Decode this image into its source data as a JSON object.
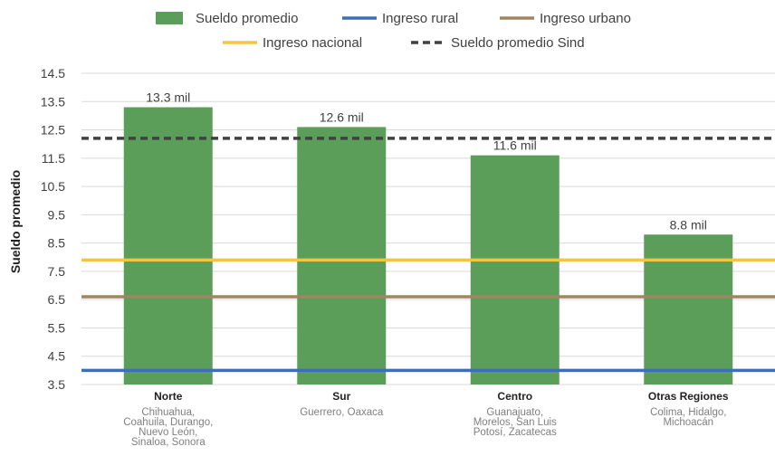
{
  "chart_data": {
    "type": "bar",
    "ylabel": "Sueldo promedio",
    "ylim": [
      3.5,
      14.5
    ],
    "yticks": [
      "14.5",
      "13.5",
      "12.5",
      "11.5",
      "10.5",
      "9.5",
      "8.5",
      "7.5",
      "6.5",
      "5.5",
      "4.5",
      "3.5"
    ],
    "ytick_values": [
      14.5,
      13.5,
      12.5,
      11.5,
      10.5,
      9.5,
      8.5,
      7.5,
      6.5,
      5.5,
      4.5,
      3.5
    ],
    "grid": true,
    "legend_position": "top",
    "categories": [
      {
        "name": "Norte",
        "sub": [
          "Chihuahua,",
          "Coahuila, Durango,",
          "Nuevo León,",
          "Sinaloa, Sonora"
        ]
      },
      {
        "name": "Sur",
        "sub": [
          "Guerrero, Oaxaca"
        ]
      },
      {
        "name": "Centro",
        "sub": [
          "Guanajuato,",
          "Morelos, San Luis",
          "Potosí, Zacatecas"
        ]
      },
      {
        "name": "Otras Regiones",
        "sub": [
          "Colima, Hidalgo,",
          "Michoacán"
        ]
      }
    ],
    "bars": {
      "name": "Sueldo promedio",
      "values": [
        13.3,
        12.6,
        11.6,
        8.8
      ],
      "labels": [
        "13.3 mil",
        "12.6 mil",
        "11.6 mil",
        "8.8 mil"
      ],
      "color": "#5a9e5a"
    },
    "reference_lines": [
      {
        "name": "Ingreso rural",
        "value": 4.0,
        "color": "#3b6fb6",
        "style": "solid"
      },
      {
        "name": "Ingreso urbano",
        "value": 6.6,
        "color": "#a08660",
        "style": "solid"
      },
      {
        "name": "Ingreso nacional",
        "value": 7.9,
        "color": "#f5c542",
        "style": "solid"
      },
      {
        "name": "Sueldo promedio Sind",
        "value": 12.2,
        "color": "#404040",
        "style": "dashed"
      }
    ],
    "legend": {
      "row1": [
        "Sueldo promedio",
        "Ingreso rural",
        "Ingreso urbano"
      ],
      "row2": [
        "Ingreso nacional",
        "Sueldo promedio Sind"
      ]
    }
  }
}
